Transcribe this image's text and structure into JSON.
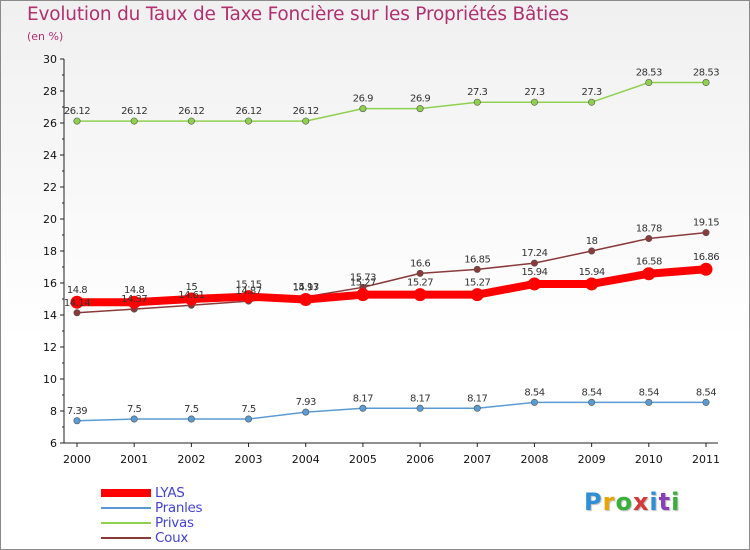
{
  "chart_data": {
    "type": "line",
    "title": "Evolution du Taux de Taxe Foncière sur les Propriétés Bâties",
    "subtitle": "(en %)",
    "x": [
      "2000",
      "2001",
      "2002",
      "2003",
      "2004",
      "2005",
      "2006",
      "2007",
      "2008",
      "2009",
      "2010",
      "2011"
    ],
    "ylim": [
      6,
      30
    ],
    "yticks": [
      6,
      8,
      10,
      12,
      14,
      16,
      18,
      20,
      22,
      24,
      26,
      28,
      30
    ],
    "grid": false,
    "legend_position": "bottom-left",
    "series": [
      {
        "name": "LYAS",
        "color": "#ff0000",
        "values": [
          14.8,
          14.8,
          15,
          15.15,
          14.97,
          15.27,
          15.27,
          15.27,
          15.94,
          15.94,
          16.58,
          16.86
        ],
        "labels": [
          "14.8",
          "14.8",
          "15",
          "15.15",
          "14.97",
          "15.27",
          "15.27",
          "15.27",
          "15.94",
          "15.94",
          "16.58",
          "16.86"
        ]
      },
      {
        "name": "Pranles",
        "color": "#5b9bd5",
        "values": [
          7.39,
          7.5,
          7.5,
          7.5,
          7.93,
          8.17,
          8.17,
          8.17,
          8.54,
          8.54,
          8.54,
          8.54
        ],
        "labels": [
          "7.39",
          "7.5",
          "7.5",
          "7.5",
          "7.93",
          "8.17",
          "8.17",
          "8.17",
          "8.54",
          "8.54",
          "8.54",
          "8.54"
        ]
      },
      {
        "name": "Privas",
        "color": "#8fd14f",
        "values": [
          26.12,
          26.12,
          26.12,
          26.12,
          26.12,
          26.9,
          26.9,
          27.3,
          27.3,
          27.3,
          28.53,
          28.53
        ],
        "labels": [
          "26.12",
          "26.12",
          "26.12",
          "26.12",
          "26.12",
          "26.9",
          "26.9",
          "27.3",
          "27.3",
          "27.3",
          "28.53",
          "28.53"
        ]
      },
      {
        "name": "Coux",
        "color": "#8b3a3a",
        "values": [
          14.14,
          14.37,
          14.61,
          14.87,
          15.13,
          15.73,
          16.6,
          16.85,
          17.24,
          18,
          18.78,
          19.15
        ],
        "labels": [
          "14.14",
          "14.37",
          "14.61",
          "14.87",
          "15.13",
          "15.73",
          "16.6",
          "16.85",
          "17.24",
          "18",
          "18.78",
          "19.15"
        ]
      }
    ]
  },
  "logo": {
    "text": "Proxiti"
  }
}
